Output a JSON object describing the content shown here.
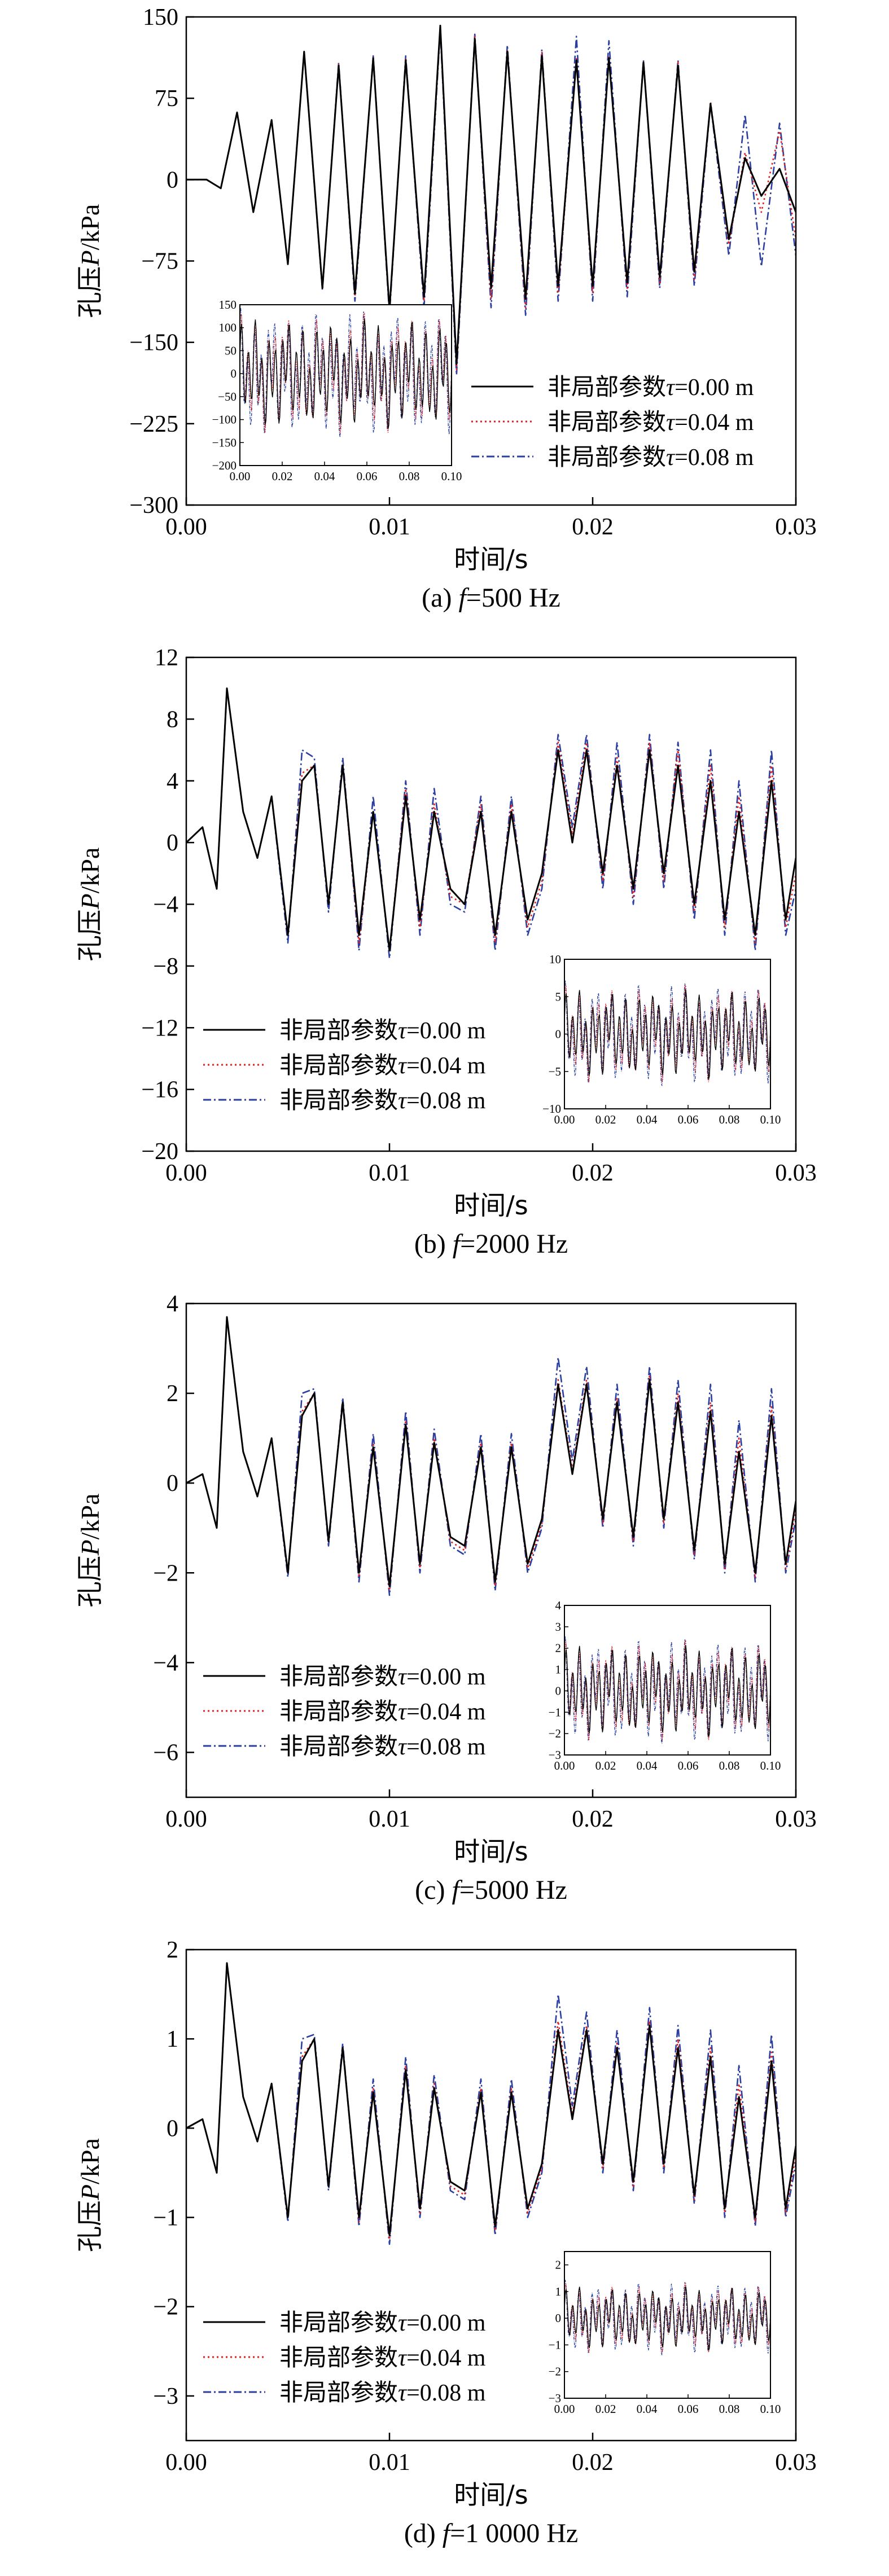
{
  "figure": {
    "x_axis_label": "时间/s",
    "y_axis_label_prefix": "孔压",
    "y_axis_label_var": "P",
    "y_axis_label_suffix": "/kPa",
    "legend_entries": [
      {
        "prefix": "非局部参数",
        "var": "τ",
        "value": "=0.00 m",
        "color": "#000000",
        "dash": "solid"
      },
      {
        "prefix": "非局部参数",
        "var": "τ",
        "value": "=0.04 m",
        "color": "#e02020",
        "dash": "dot"
      },
      {
        "prefix": "非局部参数",
        "var": "τ",
        "value": "=0.08 m",
        "color": "#2a3fa0",
        "dash": "dashdot"
      }
    ]
  },
  "chart_data": [
    {
      "type": "line",
      "caption_prefix": "(a) ",
      "caption_var": "f",
      "caption_value": "=500 Hz",
      "xlim": [
        0,
        0.03
      ],
      "ylim": [
        -300,
        150
      ],
      "x_ticks": [
        "0.00",
        "0.01",
        "0.02",
        "0.03"
      ],
      "y_ticks": [
        "150",
        "75",
        "0",
        "−75",
        "−150",
        "−225",
        "−300"
      ],
      "y_tick_values": [
        150,
        75,
        0,
        -75,
        -150,
        -225,
        -300
      ],
      "x": [
        0.0,
        0.001,
        0.0017,
        0.0025,
        0.0033,
        0.0042,
        0.005,
        0.0058,
        0.0067,
        0.0075,
        0.0083,
        0.0092,
        0.01,
        0.0108,
        0.0117,
        0.0125,
        0.0133,
        0.0142,
        0.015,
        0.0158,
        0.0167,
        0.0175,
        0.0183,
        0.0192,
        0.02,
        0.0208,
        0.0217,
        0.0225,
        0.0233,
        0.0242,
        0.025,
        0.0258,
        0.0267,
        0.0275,
        0.0283,
        0.0292,
        0.03
      ],
      "series": [
        {
          "name": "非局部参数τ=0.00 m",
          "values": [
            0,
            0,
            -8,
            62,
            -30,
            55,
            -78,
            118,
            -100,
            105,
            -105,
            112,
            -120,
            110,
            -108,
            142,
            -170,
            130,
            -100,
            118,
            -110,
            114,
            -98,
            110,
            -98,
            112,
            -95,
            108,
            -90,
            105,
            -85,
            70,
            -55,
            20,
            -15,
            10,
            -30
          ]
        },
        {
          "name": "非局部参数τ=0.04 m",
          "values": [
            0,
            0,
            -8,
            62,
            -30,
            55,
            -78,
            118,
            -100,
            106,
            -108,
            113,
            -122,
            112,
            -112,
            140,
            -175,
            132,
            -110,
            120,
            -118,
            118,
            -105,
            112,
            -104,
            114,
            -100,
            110,
            -95,
            108,
            -92,
            72,
            -60,
            25,
            -30,
            45,
            -55
          ]
        },
        {
          "name": "非局部参数τ=0.08 m",
          "values": [
            0,
            0,
            -8,
            62,
            -30,
            55,
            -78,
            118,
            -102,
            108,
            -112,
            114,
            -125,
            114,
            -118,
            138,
            -180,
            134,
            -118,
            124,
            -125,
            120,
            -112,
            132,
            -112,
            128,
            -108,
            110,
            -100,
            110,
            -98,
            70,
            -70,
            60,
            -80,
            52,
            -70
          ]
        }
      ],
      "inset": {
        "xlim": [
          0,
          0.1
        ],
        "ylim": [
          -200,
          150
        ],
        "x_ticks": [
          "0.00",
          "0.02",
          "0.04",
          "0.06",
          "0.08",
          "0.10"
        ],
        "y_ticks": [
          "150",
          "100",
          "50",
          "0",
          "−50",
          "−100",
          "−150",
          "−200"
        ],
        "y_tick_values": [
          150,
          100,
          50,
          0,
          -50,
          -100,
          -150,
          -200
        ],
        "amplitude": 140
      },
      "legend_position": "bottom-right",
      "inset_position": "bottom-left"
    },
    {
      "type": "line",
      "caption_prefix": "(b) ",
      "caption_var": "f",
      "caption_value": "=2000 Hz",
      "xlim": [
        0,
        0.03
      ],
      "ylim": [
        -20,
        12
      ],
      "x_ticks": [
        "0.00",
        "0.01",
        "0.02",
        "0.03"
      ],
      "y_ticks": [
        "12",
        "8",
        "4",
        "0",
        "−4",
        "−8",
        "−12",
        "−16",
        "−20"
      ],
      "y_tick_values": [
        12,
        8,
        4,
        0,
        -4,
        -8,
        -12,
        -16,
        -20
      ],
      "x": [
        0.0,
        0.0008,
        0.0015,
        0.002,
        0.0028,
        0.0035,
        0.0042,
        0.005,
        0.0057,
        0.0063,
        0.007,
        0.0077,
        0.0085,
        0.0092,
        0.01,
        0.0108,
        0.0115,
        0.0122,
        0.013,
        0.0137,
        0.0145,
        0.0152,
        0.016,
        0.0168,
        0.0175,
        0.0183,
        0.019,
        0.0197,
        0.0205,
        0.0212,
        0.022,
        0.0228,
        0.0235,
        0.0242,
        0.025,
        0.0258,
        0.0265,
        0.0272,
        0.028,
        0.0288,
        0.0295,
        0.03
      ],
      "series": [
        {
          "name": "非局部参数τ=0.00 m",
          "values": [
            0,
            1,
            -3,
            10,
            2,
            -1,
            3,
            -6,
            4,
            5,
            -4,
            5,
            -6,
            2,
            -7,
            3,
            -5,
            2,
            -3,
            -4,
            2,
            -6,
            2,
            -5,
            -2,
            6,
            0,
            6,
            -2,
            5,
            -3,
            6,
            -2,
            5,
            -4,
            4,
            -5,
            2,
            -6,
            4,
            -5,
            -1
          ]
        },
        {
          "name": "非局部参数τ=0.04 m",
          "values": [
            0,
            1,
            -3,
            10,
            2,
            -1,
            3,
            -6,
            4.5,
            5,
            -4,
            5,
            -6.5,
            2,
            -7,
            3.5,
            -5.5,
            2.5,
            -3.5,
            -4,
            2.5,
            -6.5,
            2.5,
            -5.5,
            -2.5,
            6.5,
            0.5,
            6.5,
            -2.5,
            5.5,
            -3.5,
            6.5,
            -2.5,
            6,
            -4.5,
            5,
            -5.5,
            3,
            -6.5,
            5,
            -5.5,
            -2
          ]
        },
        {
          "name": "非局部参数τ=0.08 m",
          "values": [
            0,
            1,
            -3,
            10,
            2,
            -1,
            3,
            -6.5,
            6,
            5.5,
            -4.5,
            5.5,
            -7,
            3,
            -7.5,
            4,
            -6,
            3.5,
            -4,
            -4.5,
            3,
            -7,
            3,
            -6,
            -3,
            7,
            1,
            7,
            -3,
            6.5,
            -4,
            7,
            -3,
            6.5,
            -5,
            6,
            -6,
            4,
            -7,
            6,
            -6,
            -3
          ]
        }
      ],
      "inset": {
        "xlim": [
          0,
          0.1
        ],
        "ylim": [
          -10,
          10
        ],
        "x_ticks": [
          "0.00",
          "0.02",
          "0.04",
          "0.06",
          "0.08",
          "0.10"
        ],
        "y_ticks": [
          "10",
          "5",
          "0",
          "−5",
          "−10"
        ],
        "y_tick_values": [
          10,
          5,
          0,
          -5,
          -10
        ],
        "amplitude": 7
      },
      "legend_position": "bottom-left",
      "inset_position": "bottom-right"
    },
    {
      "type": "line",
      "caption_prefix": "(c) ",
      "caption_var": "f",
      "caption_value": "=5000 Hz",
      "xlim": [
        0,
        0.03
      ],
      "ylim": [
        -7,
        4
      ],
      "x_ticks": [
        "0.00",
        "0.01",
        "0.02",
        "0.03"
      ],
      "y_ticks": [
        "4",
        "2",
        "0",
        "−2",
        "−4",
        "−6"
      ],
      "y_tick_values": [
        4,
        2,
        0,
        -2,
        -4,
        -6
      ],
      "x": [
        0.0,
        0.0008,
        0.0015,
        0.002,
        0.0028,
        0.0035,
        0.0042,
        0.005,
        0.0057,
        0.0063,
        0.007,
        0.0077,
        0.0085,
        0.0092,
        0.01,
        0.0108,
        0.0115,
        0.0122,
        0.013,
        0.0137,
        0.0145,
        0.0152,
        0.016,
        0.0168,
        0.0175,
        0.0183,
        0.019,
        0.0197,
        0.0205,
        0.0212,
        0.022,
        0.0228,
        0.0235,
        0.0242,
        0.025,
        0.0258,
        0.0265,
        0.0272,
        0.028,
        0.0288,
        0.0295,
        0.03
      ],
      "series": [
        {
          "name": "非局部参数τ=0.00 m",
          "values": [
            0,
            0.2,
            -1,
            3.7,
            0.7,
            -0.3,
            1,
            -2,
            1.5,
            2,
            -1.3,
            1.8,
            -2,
            0.8,
            -2.3,
            1.3,
            -1.8,
            0.9,
            -1.2,
            -1.4,
            0.8,
            -2.2,
            0.8,
            -1.8,
            -0.8,
            2.2,
            0.2,
            2.2,
            -0.8,
            1.8,
            -1.2,
            2.3,
            -0.8,
            1.8,
            -1.5,
            1.6,
            -1.8,
            0.7,
            -2,
            1.5,
            -1.8,
            -0.4
          ]
        },
        {
          "name": "非局部参数τ=0.04 m",
          "values": [
            0,
            0.2,
            -1,
            3.7,
            0.7,
            -0.3,
            1,
            -2,
            1.6,
            2,
            -1.3,
            1.8,
            -2.1,
            0.9,
            -2.4,
            1.4,
            -1.9,
            1,
            -1.3,
            -1.5,
            0.9,
            -2.3,
            0.9,
            -1.9,
            -0.9,
            2.3,
            0.3,
            2.3,
            -0.9,
            1.9,
            -1.3,
            2.4,
            -0.9,
            2,
            -1.6,
            1.8,
            -1.9,
            1,
            -2.1,
            1.7,
            -1.9,
            -0.6
          ]
        },
        {
          "name": "非局部参数τ=0.08 m",
          "values": [
            0,
            0.2,
            -1,
            3.7,
            0.7,
            -0.3,
            1,
            -2.1,
            2,
            2.1,
            -1.4,
            1.9,
            -2.2,
            1.1,
            -2.5,
            1.6,
            -2,
            1.2,
            -1.4,
            -1.6,
            1.1,
            -2.4,
            1.1,
            -2,
            -1,
            2.8,
            0.5,
            2.6,
            -1,
            2.2,
            -1.4,
            2.6,
            -1,
            2.3,
            -1.7,
            2.2,
            -2,
            1.4,
            -2.2,
            2.1,
            -2,
            -0.8
          ]
        }
      ],
      "inset": {
        "xlim": [
          0,
          0.1
        ],
        "ylim": [
          -3,
          4
        ],
        "x_ticks": [
          "0.00",
          "0.02",
          "0.04",
          "0.06",
          "0.08",
          "0.10"
        ],
        "y_ticks": [
          "4",
          "3",
          "2",
          "1",
          "0",
          "−1",
          "−2",
          "−3"
        ],
        "y_tick_values": [
          4,
          3,
          2,
          1,
          0,
          -1,
          -2,
          -3
        ],
        "amplitude": 2.5
      },
      "legend_position": "bottom-left",
      "inset_position": "bottom-right"
    },
    {
      "type": "line",
      "caption_prefix": "(d) ",
      "caption_var": "f",
      "caption_value": "=1 0000 Hz",
      "xlim": [
        0,
        0.03
      ],
      "ylim": [
        -3.5,
        2
      ],
      "x_ticks": [
        "0.00",
        "0.01",
        "0.02",
        "0.03"
      ],
      "y_ticks": [
        "2",
        "1",
        "0",
        "−1",
        "−2",
        "−3"
      ],
      "y_tick_values": [
        2,
        1,
        0,
        -1,
        -2,
        -3
      ],
      "x": [
        0.0,
        0.0008,
        0.0015,
        0.002,
        0.0028,
        0.0035,
        0.0042,
        0.005,
        0.0057,
        0.0063,
        0.007,
        0.0077,
        0.0085,
        0.0092,
        0.01,
        0.0108,
        0.0115,
        0.0122,
        0.013,
        0.0137,
        0.0145,
        0.0152,
        0.016,
        0.0168,
        0.0175,
        0.0183,
        0.019,
        0.0197,
        0.0205,
        0.0212,
        0.022,
        0.0228,
        0.0235,
        0.0242,
        0.025,
        0.0258,
        0.0265,
        0.0272,
        0.028,
        0.0288,
        0.0295,
        0.03
      ],
      "series": [
        {
          "name": "非局部参数τ=0.00 m",
          "values": [
            0,
            0.1,
            -0.5,
            1.85,
            0.35,
            -0.15,
            0.5,
            -1,
            0.75,
            1,
            -0.65,
            0.9,
            -1,
            0.4,
            -1.2,
            0.65,
            -0.9,
            0.45,
            -0.6,
            -0.7,
            0.4,
            -1.1,
            0.4,
            -0.9,
            -0.4,
            1.1,
            0.1,
            1.1,
            -0.4,
            0.9,
            -0.6,
            1.15,
            -0.4,
            0.9,
            -0.75,
            0.8,
            -0.9,
            0.35,
            -1,
            0.75,
            -0.9,
            -0.2
          ]
        },
        {
          "name": "非局部参数τ=0.04 m",
          "values": [
            0,
            0.1,
            -0.5,
            1.85,
            0.35,
            -0.15,
            0.5,
            -1,
            0.8,
            1,
            -0.65,
            0.9,
            -1.05,
            0.45,
            -1.25,
            0.7,
            -0.95,
            0.5,
            -0.65,
            -0.75,
            0.45,
            -1.15,
            0.45,
            -0.95,
            -0.45,
            1.2,
            0.15,
            1.15,
            -0.45,
            0.95,
            -0.65,
            1.2,
            -0.45,
            1,
            -0.8,
            0.9,
            -0.95,
            0.5,
            -1.05,
            0.85,
            -0.95,
            -0.3
          ]
        },
        {
          "name": "非局部参数τ=0.08 m",
          "values": [
            0,
            0.1,
            -0.5,
            1.85,
            0.35,
            -0.15,
            0.5,
            -1.05,
            1,
            1.05,
            -0.7,
            0.95,
            -1.1,
            0.55,
            -1.3,
            0.8,
            -1,
            0.6,
            -0.7,
            -0.8,
            0.55,
            -1.2,
            0.55,
            -1,
            -0.5,
            1.5,
            0.25,
            1.3,
            -0.5,
            1.1,
            -0.7,
            1.35,
            -0.5,
            1.15,
            -0.85,
            1.1,
            -1,
            0.7,
            -1.1,
            1.05,
            -1,
            -0.4
          ]
        }
      ],
      "inset": {
        "xlim": [
          0,
          0.1
        ],
        "ylim": [
          -3,
          2.5
        ],
        "x_ticks": [
          "0.00",
          "0.02",
          "0.04",
          "0.06",
          "0.08",
          "0.10"
        ],
        "y_ticks": [
          "2",
          "1",
          "0",
          "−1",
          "−2",
          "−3"
        ],
        "y_tick_values": [
          2,
          1,
          0,
          -1,
          -2,
          -3
        ],
        "amplitude": 1.4
      },
      "legend_position": "bottom-left",
      "inset_position": "bottom-right"
    }
  ]
}
